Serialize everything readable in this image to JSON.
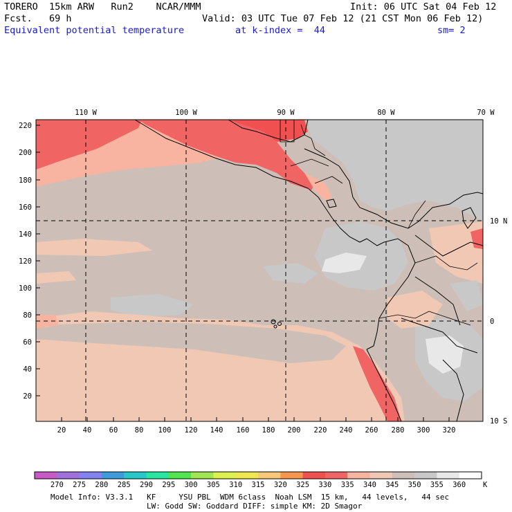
{
  "header": {
    "model": "TORERO  15km ARW   Run2    NCAR/MMM",
    "init": "Init: 06 UTC Sat 04 Feb 12",
    "fcst": "Fcst.   69 h",
    "valid": "Valid: 03 UTC Tue 07 Feb 12 (21 CST Mon 06 Feb 12)",
    "field": "Equivalent potential temperature",
    "level": "at k-index =  44",
    "smooth": "sm= 2"
  },
  "top_lon_labels": [
    "110 W",
    "100 W",
    "90 W",
    "80 W",
    "70 W"
  ],
  "right_lat_labels": [
    "10 N",
    "0",
    "10 S"
  ],
  "y_ticks": [
    "220",
    "200",
    "180",
    "160",
    "140",
    "120",
    "100",
    "80",
    "60",
    "40",
    "20"
  ],
  "x_ticks": [
    "20",
    "40",
    "60",
    "80",
    "100",
    "120",
    "140",
    "160",
    "180",
    "200",
    "220",
    "240",
    "260",
    "280",
    "300",
    "320"
  ],
  "colorbar": {
    "labels": [
      "270",
      "275",
      "280",
      "285",
      "290",
      "295",
      "300",
      "305",
      "310",
      "315",
      "320",
      "325",
      "330",
      "335",
      "340",
      "345",
      "350",
      "355",
      "360"
    ],
    "unit": "K",
    "colors": [
      "#c85ac8",
      "#a070dc",
      "#8282f0",
      "#3c9cdc",
      "#28c8c8",
      "#28e6a0",
      "#50e650",
      "#a0e650",
      "#dcf050",
      "#f0e650",
      "#f8c878",
      "#f89650",
      "#f05050",
      "#f06464",
      "#f8b4a0",
      "#f0c8b4",
      "#cdbfb7",
      "#c8c8c8",
      "#e8e8e8",
      "#ffffff"
    ]
  },
  "footer": {
    "line1": "Model Info: V3.3.1   KF     YSU PBL  WDM 6class  Noah LSM  15 km,   44 levels,   44 sec",
    "line2": "LW: Godd SW: Goddard DIFF: simple KM: 2D Smagor"
  }
}
